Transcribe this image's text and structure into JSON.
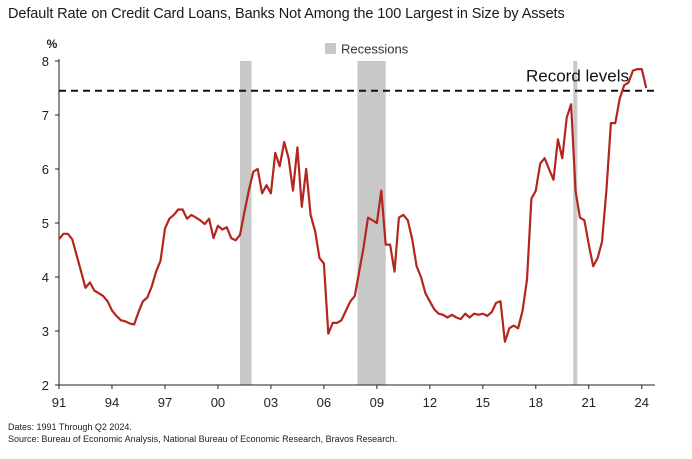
{
  "chart_data": {
    "type": "line",
    "title": "Default Rate on Credit Card Loans, Banks Not Among the 100 Largest in Size by Assets",
    "ylabel": "%",
    "xlabel": "",
    "ylim": [
      2,
      8
    ],
    "xlim": [
      1991.0,
      2024.75
    ],
    "yticks": [
      2,
      3,
      4,
      5,
      6,
      7,
      8
    ],
    "xtick_values": [
      1991,
      1994,
      1997,
      2000,
      2003,
      2006,
      2009,
      2012,
      2015,
      2018,
      2021,
      2024
    ],
    "xtick_labels": [
      "91",
      "94",
      "97",
      "00",
      "03",
      "06",
      "09",
      "12",
      "15",
      "18",
      "21",
      "24"
    ],
    "grid": false,
    "legend": {
      "label": "Recessions",
      "placement": "top-center",
      "color": "#c8c8c8"
    },
    "recessions": [
      {
        "start": 2001.25,
        "end": 2001.9
      },
      {
        "start": 2007.9,
        "end": 2009.5
      },
      {
        "start": 2020.12,
        "end": 2020.35
      }
    ],
    "reference_line": {
      "value": 7.45,
      "label": "Record levels",
      "style": "dashed",
      "color": "#111111"
    },
    "series": [
      {
        "color": "#b3261e",
        "points": [
          [
            1991.0,
            4.7
          ],
          [
            1991.25,
            4.8
          ],
          [
            1991.5,
            4.8
          ],
          [
            1991.75,
            4.7
          ],
          [
            1992.0,
            4.4
          ],
          [
            1992.25,
            4.1
          ],
          [
            1992.5,
            3.8
          ],
          [
            1992.75,
            3.9
          ],
          [
            1993.0,
            3.75
          ],
          [
            1993.25,
            3.7
          ],
          [
            1993.5,
            3.65
          ],
          [
            1993.75,
            3.55
          ],
          [
            1994.0,
            3.38
          ],
          [
            1994.25,
            3.28
          ],
          [
            1994.5,
            3.2
          ],
          [
            1994.75,
            3.18
          ],
          [
            1995.0,
            3.14
          ],
          [
            1995.25,
            3.12
          ],
          [
            1995.5,
            3.35
          ],
          [
            1995.75,
            3.55
          ],
          [
            1996.0,
            3.62
          ],
          [
            1996.25,
            3.82
          ],
          [
            1996.5,
            4.1
          ],
          [
            1996.75,
            4.3
          ],
          [
            1997.0,
            4.9
          ],
          [
            1997.25,
            5.08
          ],
          [
            1997.5,
            5.15
          ],
          [
            1997.75,
            5.25
          ],
          [
            1998.0,
            5.25
          ],
          [
            1998.25,
            5.08
          ],
          [
            1998.5,
            5.15
          ],
          [
            1998.75,
            5.1
          ],
          [
            1999.0,
            5.05
          ],
          [
            1999.25,
            4.98
          ],
          [
            1999.5,
            5.08
          ],
          [
            1999.75,
            4.72
          ],
          [
            2000.0,
            4.95
          ],
          [
            2000.25,
            4.88
          ],
          [
            2000.5,
            4.92
          ],
          [
            2000.75,
            4.72
          ],
          [
            2001.0,
            4.68
          ],
          [
            2001.25,
            4.78
          ],
          [
            2001.5,
            5.2
          ],
          [
            2001.75,
            5.6
          ],
          [
            2002.0,
            5.95
          ],
          [
            2002.25,
            6.0
          ],
          [
            2002.5,
            5.55
          ],
          [
            2002.75,
            5.7
          ],
          [
            2003.0,
            5.55
          ],
          [
            2003.25,
            6.3
          ],
          [
            2003.5,
            6.05
          ],
          [
            2003.75,
            6.5
          ],
          [
            2004.0,
            6.2
          ],
          [
            2004.25,
            5.6
          ],
          [
            2004.5,
            6.4
          ],
          [
            2004.75,
            5.3
          ],
          [
            2005.0,
            6.0
          ],
          [
            2005.25,
            5.15
          ],
          [
            2005.5,
            4.85
          ],
          [
            2005.75,
            4.35
          ],
          [
            2006.0,
            4.25
          ],
          [
            2006.25,
            2.95
          ],
          [
            2006.5,
            3.15
          ],
          [
            2006.75,
            3.15
          ],
          [
            2007.0,
            3.2
          ],
          [
            2007.25,
            3.38
          ],
          [
            2007.5,
            3.55
          ],
          [
            2007.75,
            3.65
          ],
          [
            2008.0,
            4.1
          ],
          [
            2008.25,
            4.55
          ],
          [
            2008.5,
            5.1
          ],
          [
            2008.75,
            5.05
          ],
          [
            2009.0,
            5.0
          ],
          [
            2009.25,
            5.6
          ],
          [
            2009.5,
            4.6
          ],
          [
            2009.75,
            4.6
          ],
          [
            2010.0,
            4.1
          ],
          [
            2010.25,
            5.1
          ],
          [
            2010.5,
            5.15
          ],
          [
            2010.75,
            5.05
          ],
          [
            2011.0,
            4.7
          ],
          [
            2011.25,
            4.2
          ],
          [
            2011.5,
            4.0
          ],
          [
            2011.75,
            3.7
          ],
          [
            2012.0,
            3.55
          ],
          [
            2012.25,
            3.4
          ],
          [
            2012.5,
            3.32
          ],
          [
            2012.75,
            3.3
          ],
          [
            2013.0,
            3.25
          ],
          [
            2013.25,
            3.3
          ],
          [
            2013.5,
            3.25
          ],
          [
            2013.75,
            3.22
          ],
          [
            2014.0,
            3.32
          ],
          [
            2014.25,
            3.25
          ],
          [
            2014.5,
            3.32
          ],
          [
            2014.75,
            3.3
          ],
          [
            2015.0,
            3.32
          ],
          [
            2015.25,
            3.28
          ],
          [
            2015.5,
            3.35
          ],
          [
            2015.75,
            3.52
          ],
          [
            2016.0,
            3.55
          ],
          [
            2016.25,
            2.8
          ],
          [
            2016.5,
            3.05
          ],
          [
            2016.75,
            3.1
          ],
          [
            2017.0,
            3.05
          ],
          [
            2017.25,
            3.38
          ],
          [
            2017.5,
            3.95
          ],
          [
            2017.75,
            5.45
          ],
          [
            2018.0,
            5.6
          ],
          [
            2018.25,
            6.1
          ],
          [
            2018.5,
            6.2
          ],
          [
            2018.75,
            6.0
          ],
          [
            2019.0,
            5.8
          ],
          [
            2019.25,
            6.55
          ],
          [
            2019.5,
            6.2
          ],
          [
            2019.75,
            6.95
          ],
          [
            2020.0,
            7.2
          ],
          [
            2020.25,
            5.6
          ],
          [
            2020.5,
            5.1
          ],
          [
            2020.75,
            5.05
          ],
          [
            2021.0,
            4.6
          ],
          [
            2021.25,
            4.2
          ],
          [
            2021.5,
            4.35
          ],
          [
            2021.75,
            4.65
          ],
          [
            2022.0,
            5.6
          ],
          [
            2022.25,
            6.85
          ],
          [
            2022.5,
            6.85
          ],
          [
            2022.75,
            7.3
          ],
          [
            2023.0,
            7.55
          ],
          [
            2023.25,
            7.6
          ],
          [
            2023.5,
            7.82
          ],
          [
            2023.75,
            7.85
          ],
          [
            2024.0,
            7.85
          ],
          [
            2024.25,
            7.5
          ]
        ]
      }
    ]
  },
  "footer": {
    "dates": "Dates: 1991 Through Q2 2024.",
    "source": "Source: Bureau of Economic Analysis, National Bureau of Economic Research, Bravos Research."
  }
}
